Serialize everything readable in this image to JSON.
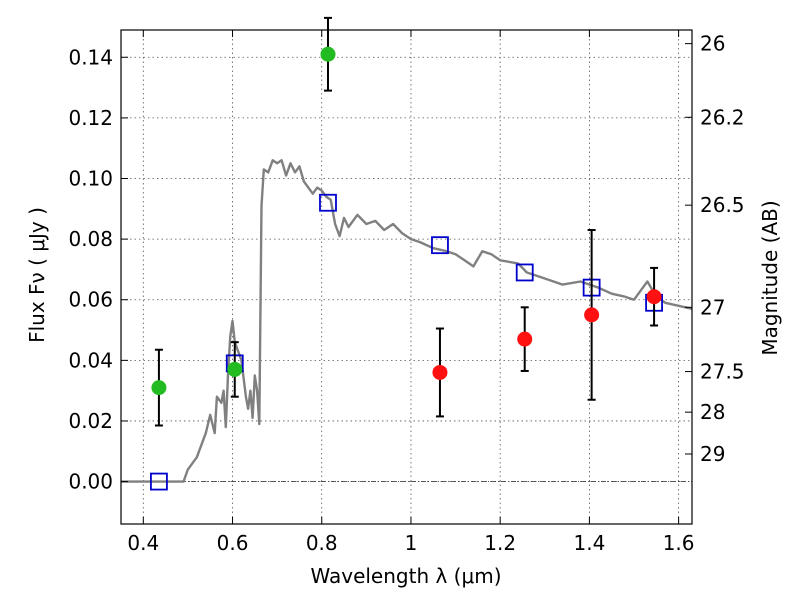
{
  "chart_data": {
    "type": "scatter",
    "xlabel": "Wavelength  λ (μm)",
    "ylabel": "Flux  Fν  ( μJy )",
    "y2label": "Magnitude (AB)",
    "xlim": [
      0.35,
      1.63
    ],
    "ylim": [
      -0.014,
      0.149
    ],
    "x_ticks": [
      0.4,
      0.6,
      0.8,
      1.0,
      1.2,
      1.4,
      1.6
    ],
    "x_tick_labels": [
      "0.4",
      "0.6",
      "0.8",
      "1",
      "1.2",
      "1.4",
      "1.6"
    ],
    "y_ticks": [
      0.0,
      0.02,
      0.04,
      0.06,
      0.08,
      0.1,
      0.12,
      0.14
    ],
    "y_tick_labels": [
      "0.00",
      "0.02",
      "0.04",
      "0.06",
      "0.08",
      "0.10",
      "0.12",
      "0.14"
    ],
    "y2_ticks": [
      {
        "label": "26",
        "flux": 0.1445
      },
      {
        "label": "26.2",
        "flux": 0.1202
      },
      {
        "label": "26.5",
        "flux": 0.0912
      },
      {
        "label": "27",
        "flux": 0.0575
      },
      {
        "label": "27.5",
        "flux": 0.0363
      },
      {
        "label": "28",
        "flux": 0.0229
      },
      {
        "label": "29",
        "flux": 0.0091
      }
    ],
    "grid": true,
    "zero_line": true,
    "series": [
      {
        "kind": "line",
        "color": "#808080",
        "x": [
          0.35,
          0.49,
          0.5,
          0.52,
          0.54,
          0.55,
          0.56,
          0.565,
          0.575,
          0.58,
          0.585,
          0.59,
          0.595,
          0.6,
          0.605,
          0.61,
          0.62,
          0.63,
          0.635,
          0.64,
          0.645,
          0.65,
          0.655,
          0.66,
          0.665,
          0.67,
          0.68,
          0.69,
          0.7,
          0.71,
          0.72,
          0.73,
          0.74,
          0.75,
          0.76,
          0.78,
          0.79,
          0.8,
          0.81,
          0.82,
          0.83,
          0.84,
          0.85,
          0.86,
          0.88,
          0.9,
          0.92,
          0.94,
          0.96,
          0.98,
          1.0,
          1.02,
          1.05,
          1.08,
          1.1,
          1.12,
          1.14,
          1.16,
          1.18,
          1.2,
          1.24,
          1.26,
          1.28,
          1.3,
          1.34,
          1.38,
          1.42,
          1.45,
          1.48,
          1.5,
          1.52,
          1.53,
          1.55,
          1.57,
          1.6,
          1.63
        ],
        "y": [
          0.0,
          0.0,
          0.004,
          0.008,
          0.016,
          0.022,
          0.016,
          0.028,
          0.026,
          0.03,
          0.018,
          0.036,
          0.048,
          0.053,
          0.046,
          0.044,
          0.04,
          0.028,
          0.024,
          0.03,
          0.021,
          0.035,
          0.03,
          0.019,
          0.091,
          0.103,
          0.102,
          0.106,
          0.105,
          0.106,
          0.101,
          0.105,
          0.102,
          0.104,
          0.099,
          0.095,
          0.097,
          0.096,
          0.094,
          0.093,
          0.085,
          0.081,
          0.087,
          0.084,
          0.088,
          0.085,
          0.086,
          0.083,
          0.085,
          0.082,
          0.08,
          0.079,
          0.077,
          0.076,
          0.075,
          0.073,
          0.071,
          0.076,
          0.075,
          0.073,
          0.072,
          0.069,
          0.068,
          0.067,
          0.065,
          0.066,
          0.064,
          0.062,
          0.061,
          0.06,
          0.064,
          0.066,
          0.061,
          0.059,
          0.058,
          0.057
        ]
      },
      {
        "kind": "points",
        "marker": "open-square",
        "color": "#0000cc",
        "x": [
          0.435,
          0.605,
          0.814,
          1.065,
          1.255,
          1.405,
          1.545
        ],
        "y": [
          0.0,
          0.039,
          0.092,
          0.078,
          0.069,
          0.064,
          0.059
        ]
      },
      {
        "kind": "points",
        "marker": "filled-circle",
        "color": "#22bb22",
        "x": [
          0.435,
          0.605,
          0.814
        ],
        "y": [
          0.031,
          0.037,
          0.141
        ],
        "err": [
          0.0125,
          0.009,
          0.012
        ]
      },
      {
        "kind": "points",
        "marker": "filled-circle",
        "color": "#ff1111",
        "x": [
          1.065,
          1.255,
          1.405,
          1.545
        ],
        "y": [
          0.036,
          0.047,
          0.055,
          0.061
        ],
        "err": [
          0.0145,
          0.0105,
          0.028,
          0.0095
        ]
      }
    ]
  }
}
